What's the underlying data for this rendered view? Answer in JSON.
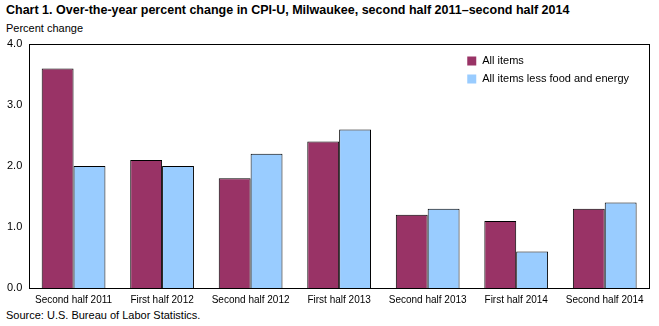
{
  "chart_data": {
    "type": "bar",
    "title": "Chart 1. Over-the-year percent change in CPI-U, Milwaukee, second half 2011–second  half 2014",
    "ylabel": "Percent change",
    "source": "Source: U.S. Bureau of Labor Statistics.",
    "categories": [
      "Second half 2011",
      "First half 2012",
      "Second half 2012",
      "First half 2013",
      "Second half 2013",
      "First half 2014",
      "Second half 2014"
    ],
    "series": [
      {
        "name": "All items",
        "color": "#993366",
        "values": [
          3.6,
          2.1,
          1.8,
          2.4,
          1.2,
          1.1,
          1.3
        ]
      },
      {
        "name": "All items less food and energy",
        "color": "#99ccff",
        "values": [
          2.0,
          2.0,
          2.2,
          2.6,
          1.3,
          0.6,
          1.4
        ]
      }
    ],
    "ylim": [
      0,
      4
    ],
    "yticks": [
      {
        "value": 0,
        "label": "0.0"
      },
      {
        "value": 1,
        "label": "1.0"
      },
      {
        "value": 2,
        "label": "2.0"
      },
      {
        "value": 3,
        "label": "3.0"
      },
      {
        "value": 4,
        "label": "4.0"
      }
    ],
    "grid": false,
    "legend": "upper right"
  }
}
